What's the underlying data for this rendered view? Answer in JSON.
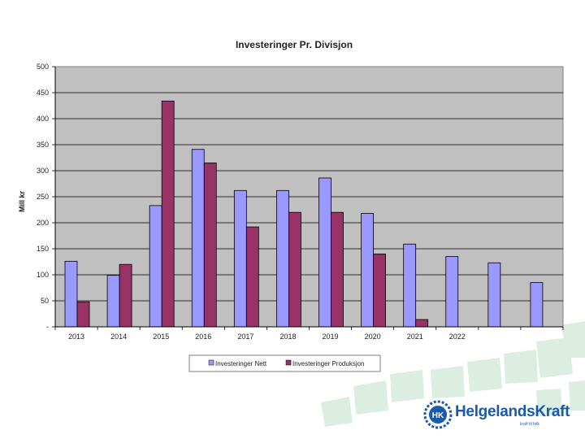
{
  "chart_data": {
    "type": "bar",
    "title": "Investeringer Pr. Divisjon",
    "xlabel": "",
    "ylabel": "Mill kr",
    "ylim": [
      0,
      500
    ],
    "yticks": [
      0,
      50,
      100,
      150,
      200,
      250,
      300,
      350,
      400,
      450,
      500
    ],
    "ytick_labels": [
      "-",
      "50",
      "100",
      "150",
      "200",
      "250",
      "300",
      "350",
      "400",
      "450",
      "500"
    ],
    "categories": [
      "2013",
      "2014",
      "2015",
      "2016",
      "2017",
      "2018",
      "2019",
      "2020",
      "2021",
      "2022",
      "",
      ""
    ],
    "series": [
      {
        "name": "Investeringer Nett",
        "color": "#9999ff",
        "values": [
          126,
          99,
          233,
          341,
          262,
          262,
          286,
          218,
          159,
          135,
          123,
          85
        ]
      },
      {
        "name": "Investeringer Produksjon",
        "color": "#993366",
        "values": [
          48,
          120,
          434,
          315,
          192,
          220,
          220,
          140,
          14,
          null,
          null,
          null
        ]
      }
    ],
    "grid": true,
    "legend_position": "bottom",
    "plot_background": "#c0c0c0"
  },
  "branding": {
    "logo_mark": "HK",
    "company_name": "HelgelandsKraft",
    "tagline": "kraft til folk"
  }
}
